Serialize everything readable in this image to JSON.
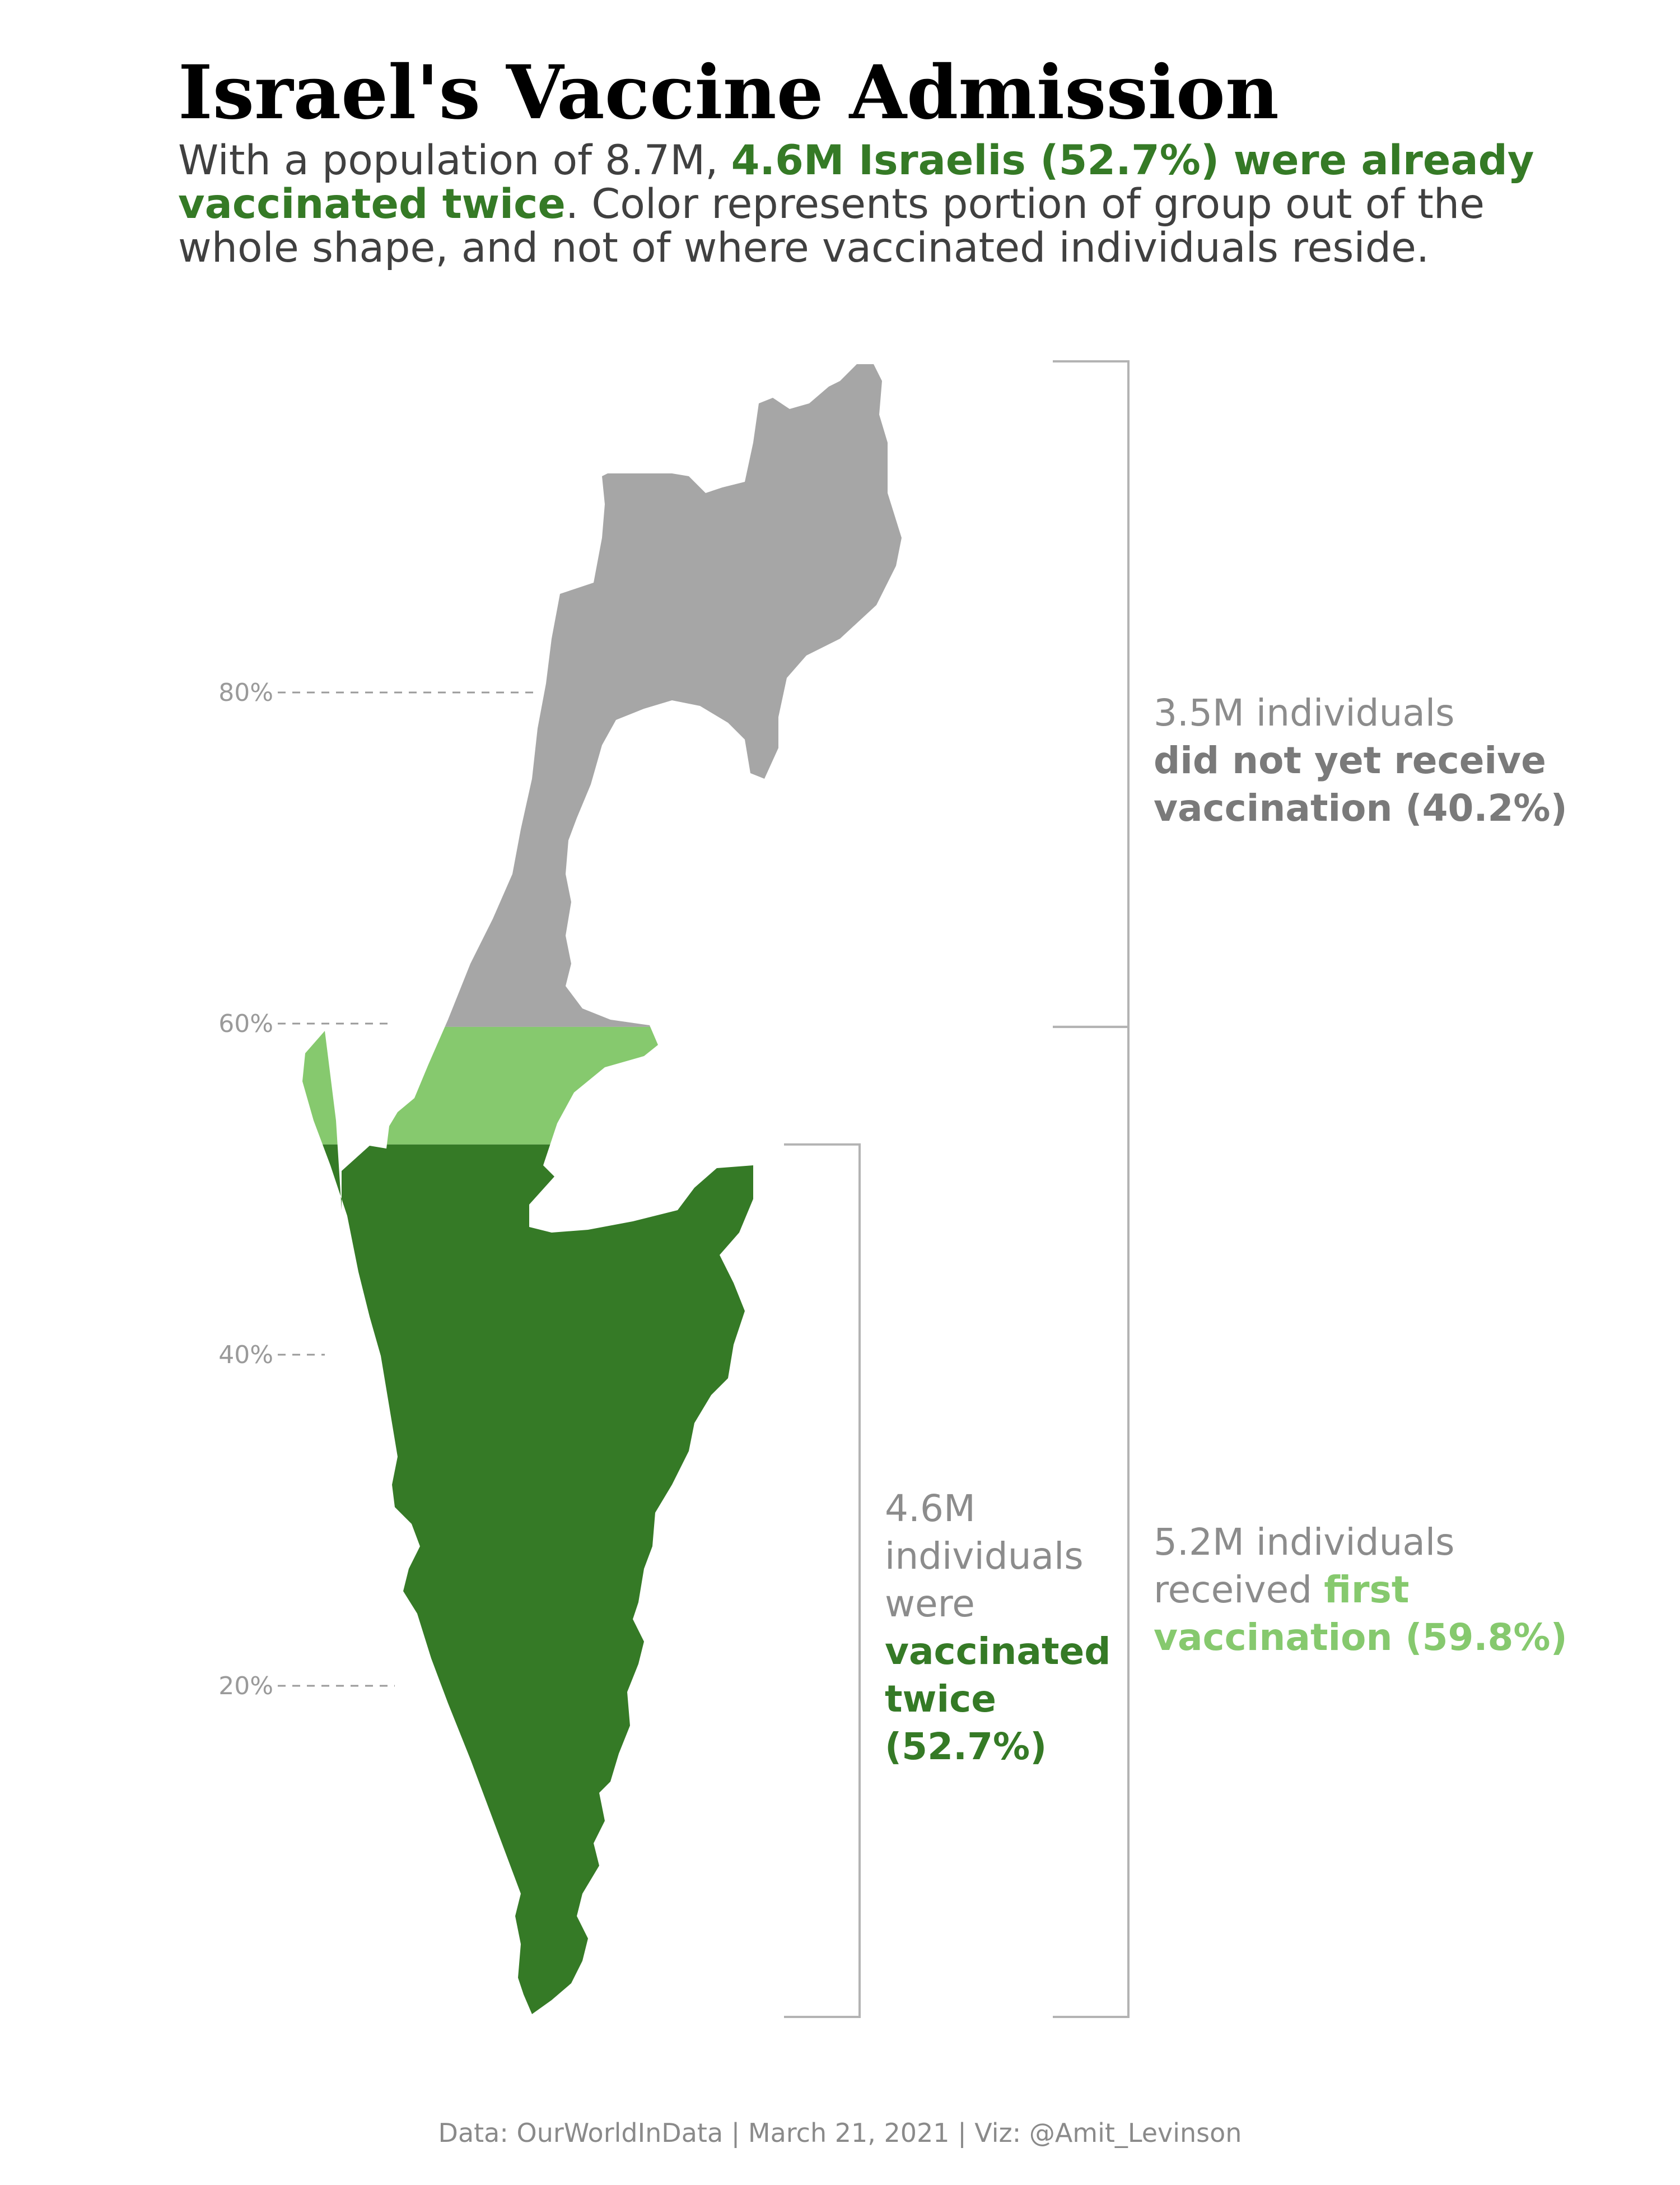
{
  "title": "Israel's Vaccine Admission",
  "subtitle": {
    "part1": "With a population of 8.7M, ",
    "highlight": "4.6M Israelis (52.7%) were already vaccinated twice",
    "part2": ". Color represents portion of group out of the whole shape, and not of where vaccinated individuals reside."
  },
  "annotations": {
    "not_vaccinated": {
      "plain": "3.5M individuals",
      "bold": "did not yet receive vaccination (40.2%)"
    },
    "first_dose": {
      "plain": "5.2M individuals received ",
      "bold": "first vaccination (59.8%)"
    },
    "twice": {
      "plain": "4.6M individuals were ",
      "bold": "vaccinated twice (52.7%)"
    }
  },
  "footer": "Data: OurWorldInData | March 21, 2021 | Viz: @Amit_Levinson",
  "colors": {
    "not_vaccinated": "#a6a6a6",
    "first_dose": "#86c96e",
    "twice": "#357a26",
    "bracket": "#b3b3b3",
    "tick": "#9a9a9a"
  },
  "chart_data": {
    "type": "area",
    "axis": "percent of the map's vertical extent, bottom = 0%",
    "ticks": [
      {
        "value": 20,
        "label": "20%"
      },
      {
        "value": 40,
        "label": "40%"
      },
      {
        "value": 60,
        "label": "60%"
      },
      {
        "value": 80,
        "label": "80%"
      }
    ],
    "segments": [
      {
        "group": "vaccinated twice",
        "share_percent": 52.7,
        "people_millions": 4.6
      },
      {
        "group": "received first vaccination",
        "share_percent": 59.8,
        "people_millions": 5.2
      },
      {
        "group": "did not yet receive vaccination",
        "share_percent": 40.2,
        "people_millions": 3.5
      }
    ],
    "population_millions": 8.7
  }
}
